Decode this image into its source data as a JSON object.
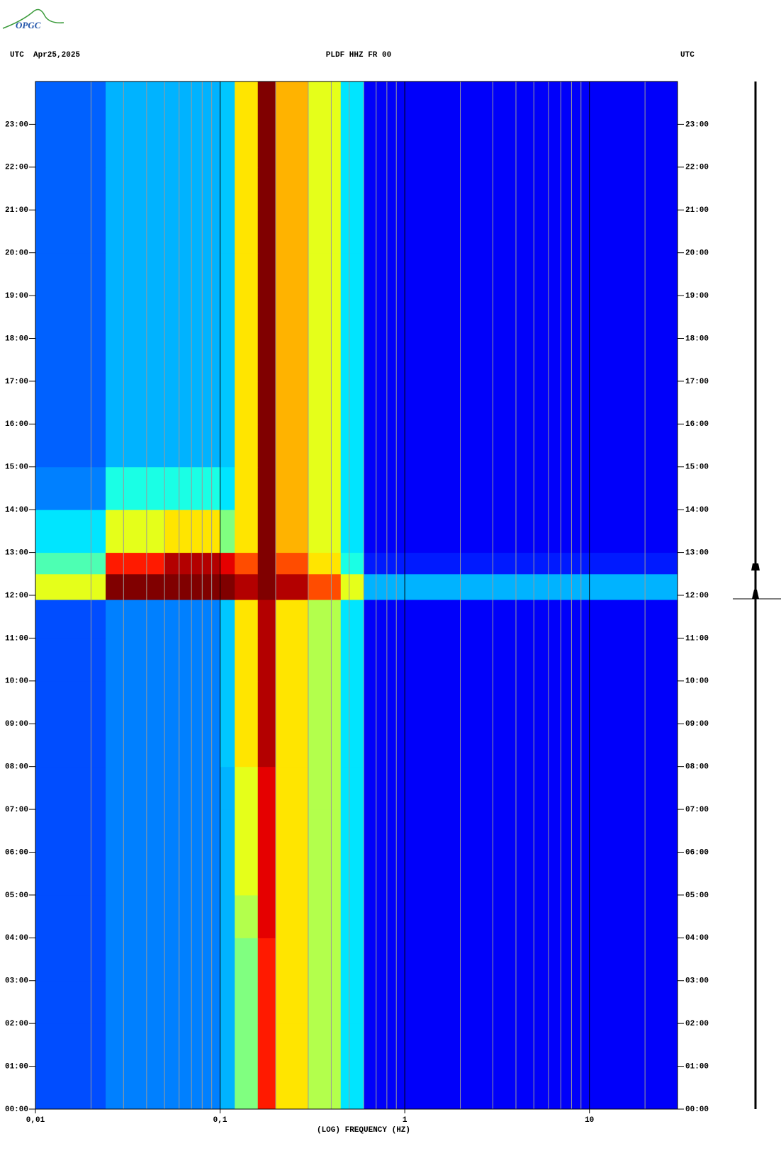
{
  "logo": "OPGC",
  "chart_data": {
    "type": "heatmap",
    "title": "PLDF HHZ FR 00",
    "left_label": "UTC  Apr25,2025",
    "right_label": "UTC",
    "xlabel": "(LOG) FREQUENCY (HZ)",
    "xscale": "log",
    "xlim": [
      0.01,
      30
    ],
    "xticks": [
      {
        "value": 0.01,
        "label": "0,01"
      },
      {
        "value": 0.1,
        "label": "0,1"
      },
      {
        "value": 1,
        "label": "1"
      },
      {
        "value": 10,
        "label": "10"
      }
    ],
    "xgrid": [
      0.02,
      0.03,
      0.04,
      0.05,
      0.06,
      0.07,
      0.08,
      0.09,
      0.2,
      0.3,
      0.4,
      0.5,
      0.6,
      0.7,
      0.8,
      0.9,
      2,
      3,
      4,
      5,
      6,
      7,
      8,
      9,
      20
    ],
    "ylim": [
      0,
      24
    ],
    "yticks": [
      {
        "value": 0,
        "label": "00:00"
      },
      {
        "value": 1,
        "label": "01:00"
      },
      {
        "value": 2,
        "label": "02:00"
      },
      {
        "value": 3,
        "label": "03:00"
      },
      {
        "value": 4,
        "label": "04:00"
      },
      {
        "value": 5,
        "label": "05:00"
      },
      {
        "value": 6,
        "label": "06:00"
      },
      {
        "value": 7,
        "label": "07:00"
      },
      {
        "value": 8,
        "label": "08:00"
      },
      {
        "value": 9,
        "label": "09:00"
      },
      {
        "value": 10,
        "label": "10:00"
      },
      {
        "value": 11,
        "label": "11:00"
      },
      {
        "value": 12,
        "label": "12:00"
      },
      {
        "value": 13,
        "label": "13:00"
      },
      {
        "value": 14,
        "label": "14:00"
      },
      {
        "value": 15,
        "label": "15:00"
      },
      {
        "value": 16,
        "label": "16:00"
      },
      {
        "value": 17,
        "label": "17:00"
      },
      {
        "value": 18,
        "label": "18:00"
      },
      {
        "value": 19,
        "label": "19:00"
      },
      {
        "value": 20,
        "label": "20:00"
      },
      {
        "value": 21,
        "label": "21:00"
      },
      {
        "value": 22,
        "label": "22:00"
      },
      {
        "value": 23,
        "label": "23:00"
      }
    ],
    "x_edges": [
      0.01,
      0.024,
      0.05,
      0.1,
      0.12,
      0.16,
      0.2,
      0.3,
      0.45,
      0.6,
      30
    ],
    "y_edges": [
      0,
      1,
      2,
      3,
      4,
      5,
      6,
      7,
      8,
      9,
      10,
      11,
      11.9,
      12.5,
      13,
      14,
      15,
      16,
      17,
      18,
      19,
      20,
      21,
      22,
      23,
      24
    ],
    "z": [
      [
        2,
        2.5,
        2.5,
        3,
        5,
        8.5,
        6.5,
        5.5,
        3.5,
        1.2
      ],
      [
        2,
        2.5,
        2.5,
        3,
        5,
        8.5,
        6.5,
        5.5,
        3.5,
        1.2
      ],
      [
        2,
        2.5,
        2.5,
        3,
        5,
        8.5,
        6.5,
        5.5,
        3.5,
        1.2
      ],
      [
        2,
        2.5,
        2.5,
        3,
        5,
        8.5,
        6.5,
        5.5,
        3.5,
        1.2
      ],
      [
        2,
        2.5,
        2.5,
        3,
        5.5,
        9,
        6.5,
        5.5,
        3.5,
        1.2
      ],
      [
        2,
        2.5,
        2.5,
        3,
        6,
        9,
        6.5,
        5.5,
        3.5,
        1.2
      ],
      [
        2,
        2.5,
        2.5,
        3,
        6,
        9,
        6.5,
        5.5,
        3.5,
        1.2
      ],
      [
        2,
        2.5,
        2.5,
        3,
        6,
        9,
        6.5,
        5.5,
        3.5,
        1.2
      ],
      [
        2,
        2.5,
        2.5,
        3.2,
        6.5,
        9.5,
        6.5,
        5.5,
        3.5,
        1.2
      ],
      [
        2,
        2.5,
        2.5,
        3.2,
        6.5,
        9.5,
        6.5,
        5.5,
        3.5,
        1.2
      ],
      [
        2,
        2.5,
        2.5,
        3.2,
        6.5,
        9.5,
        6.5,
        5.5,
        3.5,
        1.2
      ],
      [
        2,
        2.5,
        2.5,
        3.2,
        6.5,
        9.5,
        6.5,
        5.5,
        3.5,
        1.2
      ],
      [
        6,
        10,
        10,
        10,
        9.5,
        10,
        9.5,
        8,
        6,
        3
      ],
      [
        4.5,
        8.5,
        9.5,
        9,
        8,
        10,
        8,
        6.5,
        4,
        1.5
      ],
      [
        3.5,
        6,
        6.5,
        5,
        6.5,
        10,
        7,
        6,
        3.5,
        1.2
      ],
      [
        2.5,
        4,
        4,
        3.5,
        6.5,
        10,
        7,
        6,
        3.5,
        1.2
      ],
      [
        2.2,
        3,
        3,
        3.2,
        6.5,
        10,
        7,
        6,
        3.5,
        1.2
      ],
      [
        2.2,
        3,
        3,
        3.2,
        6.5,
        10,
        7,
        6,
        3.5,
        1.2
      ],
      [
        2.2,
        3,
        3,
        3.2,
        6.5,
        10,
        7,
        6,
        3.5,
        1.2
      ],
      [
        2.2,
        3,
        3,
        3.2,
        6.5,
        10,
        7,
        6,
        3.5,
        1.2
      ],
      [
        2.2,
        3,
        3,
        3.2,
        6.5,
        10,
        7,
        6,
        3.5,
        1.2
      ],
      [
        2.2,
        3,
        3,
        3.2,
        6.5,
        10,
        7,
        6,
        3.5,
        1.2
      ],
      [
        2.2,
        3,
        3,
        3.2,
        6.5,
        10,
        7,
        6,
        3.5,
        1.2
      ],
      [
        2.2,
        3,
        3,
        3.2,
        6.5,
        10,
        7,
        6,
        3.5,
        1.2
      ],
      [
        2.2,
        3,
        3,
        3.2,
        6.5,
        10,
        7,
        6,
        3.5,
        1.2
      ]
    ],
    "zlim": [
      0,
      10
    ],
    "grid_color": "#9a9a9a"
  }
}
